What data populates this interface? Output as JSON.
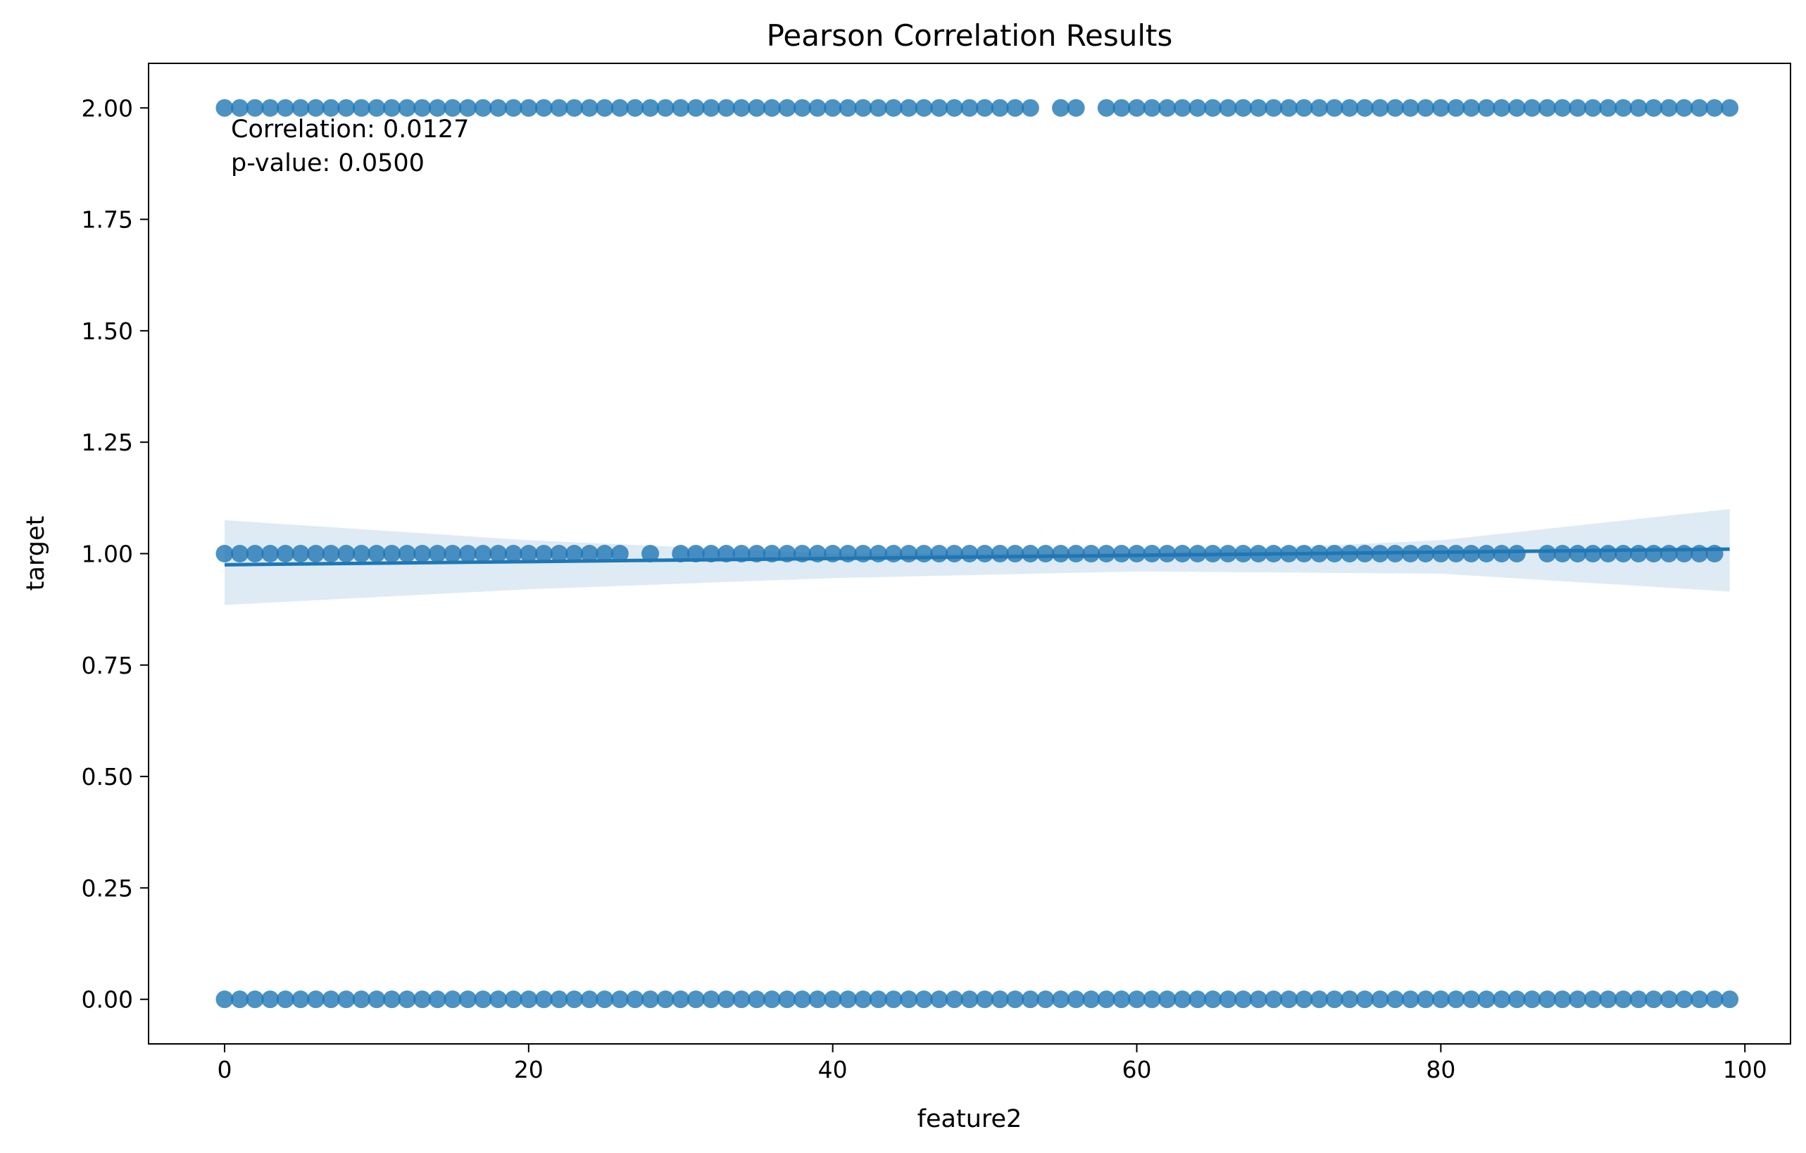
{
  "chart_data": {
    "type": "scatter",
    "title": "Pearson Correlation Results",
    "xlabel": "feature2",
    "ylabel": "target",
    "xlim": [
      -5,
      103
    ],
    "ylim": [
      -0.1,
      2.1
    ],
    "xticks": [
      0,
      20,
      40,
      60,
      80,
      100
    ],
    "yticks": [
      0.0,
      0.25,
      0.5,
      0.75,
      1.0,
      1.25,
      1.5,
      1.75,
      2.0
    ],
    "ytick_labels": [
      "0.00",
      "0.25",
      "0.50",
      "0.75",
      "1.00",
      "1.25",
      "1.50",
      "1.75",
      "2.00"
    ],
    "grid": false,
    "colors": {
      "points": "#1f77b4",
      "line": "#1f77b4",
      "band": "#1f77b4"
    },
    "annotations": [
      "Correlation: 0.0127",
      "p-value: 0.0500"
    ],
    "series": [
      {
        "y": 2,
        "x": [
          0,
          1,
          2,
          3,
          4,
          5,
          6,
          7,
          8,
          9,
          10,
          11,
          12,
          13,
          14,
          15,
          16,
          17,
          18,
          19,
          20,
          21,
          22,
          23,
          24,
          25,
          26,
          27,
          28,
          29,
          30,
          31,
          32,
          33,
          34,
          35,
          36,
          37,
          38,
          39,
          40,
          41,
          42,
          43,
          44,
          45,
          46,
          47,
          48,
          49,
          50,
          51,
          52,
          53,
          55,
          56,
          58,
          59,
          60,
          61,
          62,
          63,
          64,
          65,
          66,
          67,
          68,
          69,
          70,
          71,
          72,
          73,
          74,
          75,
          76,
          77,
          78,
          79,
          80,
          81,
          82,
          83,
          84,
          85,
          86,
          87,
          88,
          89,
          90,
          91,
          92,
          93,
          94,
          95,
          96,
          97,
          98,
          99
        ]
      },
      {
        "y": 1,
        "x": [
          0,
          1,
          2,
          3,
          4,
          5,
          6,
          7,
          8,
          9,
          10,
          11,
          12,
          13,
          14,
          15,
          16,
          17,
          18,
          19,
          20,
          21,
          22,
          23,
          24,
          25,
          26,
          28,
          30,
          31,
          32,
          33,
          34,
          35,
          36,
          37,
          38,
          39,
          40,
          41,
          42,
          43,
          44,
          45,
          46,
          47,
          48,
          49,
          50,
          51,
          52,
          53,
          54,
          55,
          56,
          57,
          58,
          59,
          60,
          61,
          62,
          63,
          64,
          65,
          66,
          67,
          68,
          69,
          70,
          71,
          72,
          73,
          74,
          75,
          76,
          77,
          78,
          79,
          80,
          81,
          82,
          83,
          84,
          85,
          87,
          88,
          89,
          90,
          91,
          92,
          93,
          94,
          95,
          96,
          97,
          98
        ]
      },
      {
        "y": 0,
        "x": [
          0,
          1,
          2,
          3,
          4,
          5,
          6,
          7,
          8,
          9,
          10,
          11,
          12,
          13,
          14,
          15,
          16,
          17,
          18,
          19,
          20,
          21,
          22,
          23,
          24,
          25,
          26,
          27,
          28,
          29,
          30,
          31,
          32,
          33,
          34,
          35,
          36,
          37,
          38,
          39,
          40,
          41,
          42,
          43,
          44,
          45,
          46,
          47,
          48,
          49,
          50,
          51,
          52,
          53,
          54,
          55,
          56,
          57,
          58,
          59,
          60,
          61,
          62,
          63,
          64,
          65,
          66,
          67,
          68,
          69,
          70,
          71,
          72,
          73,
          74,
          75,
          76,
          77,
          78,
          79,
          80,
          81,
          82,
          83,
          84,
          85,
          86,
          87,
          88,
          89,
          90,
          91,
          92,
          93,
          94,
          95,
          96,
          97,
          98,
          99
        ]
      }
    ],
    "regression": {
      "x": [
        0,
        99
      ],
      "y": [
        0.975,
        1.01
      ],
      "ci_upper": [
        [
          0,
          1.075
        ],
        [
          20,
          1.03
        ],
        [
          40,
          1.0
        ],
        [
          60,
          1.0
        ],
        [
          80,
          1.03
        ],
        [
          99,
          1.1
        ]
      ],
      "ci_lower": [
        [
          0,
          0.885
        ],
        [
          20,
          0.92
        ],
        [
          40,
          0.945
        ],
        [
          60,
          0.96
        ],
        [
          80,
          0.955
        ],
        [
          99,
          0.915
        ]
      ]
    }
  }
}
